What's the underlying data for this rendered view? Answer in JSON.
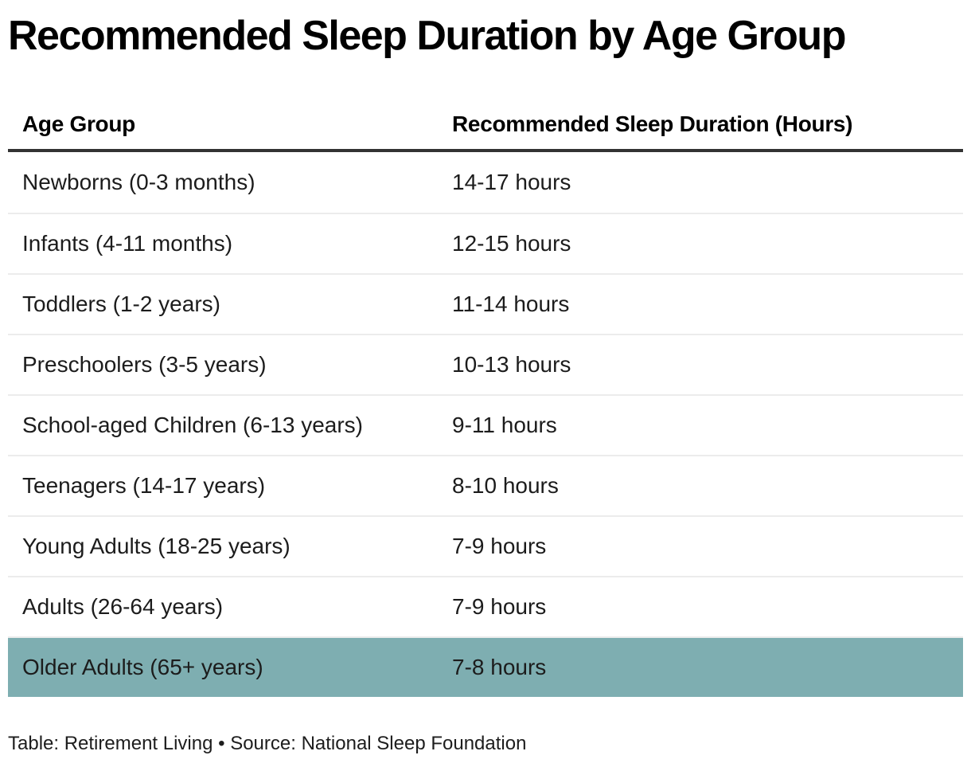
{
  "title": "Recommended Sleep Duration by Age Group",
  "table": {
    "columns": [
      {
        "label": "Age Group"
      },
      {
        "label": "Recommended Sleep Duration (Hours)"
      }
    ],
    "rows": [
      {
        "age_group": "Newborns (0-3 months)",
        "duration": "14-17 hours",
        "highlighted": false
      },
      {
        "age_group": "Infants (4-11 months)",
        "duration": "12-15 hours",
        "highlighted": false
      },
      {
        "age_group": "Toddlers (1-2 years)",
        "duration": "11-14 hours",
        "highlighted": false
      },
      {
        "age_group": "Preschoolers (3-5 years)",
        "duration": "10-13 hours",
        "highlighted": false
      },
      {
        "age_group": "School-aged Children (6-13 years)",
        "duration": "9-11 hours",
        "highlighted": false
      },
      {
        "age_group": "Teenagers (14-17 years)",
        "duration": "8-10 hours",
        "highlighted": false
      },
      {
        "age_group": "Young Adults (18-25 years)",
        "duration": "7-9 hours",
        "highlighted": false
      },
      {
        "age_group": "Adults (26-64 years)",
        "duration": "7-9 hours",
        "highlighted": false
      },
      {
        "age_group": "Older Adults (65+ years)",
        "duration": "7-8 hours",
        "highlighted": true
      }
    ],
    "highlight_color": "#7EAEB1"
  },
  "footer": {
    "text": "Table: Retirement Living • Source: National Sleep Foundation"
  },
  "colors": {
    "header_rule": "#333333",
    "row_divider": "#ececec",
    "text": "#1c1c1c",
    "highlight": "#7EAEB1"
  },
  "chart_data": {
    "type": "table",
    "title": "Recommended Sleep Duration by Age Group",
    "columns": [
      "Age Group",
      "Recommended Sleep Duration (Hours)"
    ],
    "rows": [
      [
        "Newborns (0-3 months)",
        "14-17 hours"
      ],
      [
        "Infants (4-11 months)",
        "12-15 hours"
      ],
      [
        "Toddlers (1-2 years)",
        "11-14 hours"
      ],
      [
        "Preschoolers (3-5 years)",
        "10-13 hours"
      ],
      [
        "School-aged Children (6-13 years)",
        "9-11 hours"
      ],
      [
        "Teenagers (14-17 years)",
        "8-10 hours"
      ],
      [
        "Young Adults (18-25 years)",
        "7-9 hours"
      ],
      [
        "Adults (26-64 years)",
        "7-9 hours"
      ],
      [
        "Older Adults (65+ years)",
        "7-8 hours"
      ]
    ],
    "highlighted_row": "Older Adults (65+ years)",
    "footer": "Table: Retirement Living • Source: National Sleep Foundation"
  }
}
